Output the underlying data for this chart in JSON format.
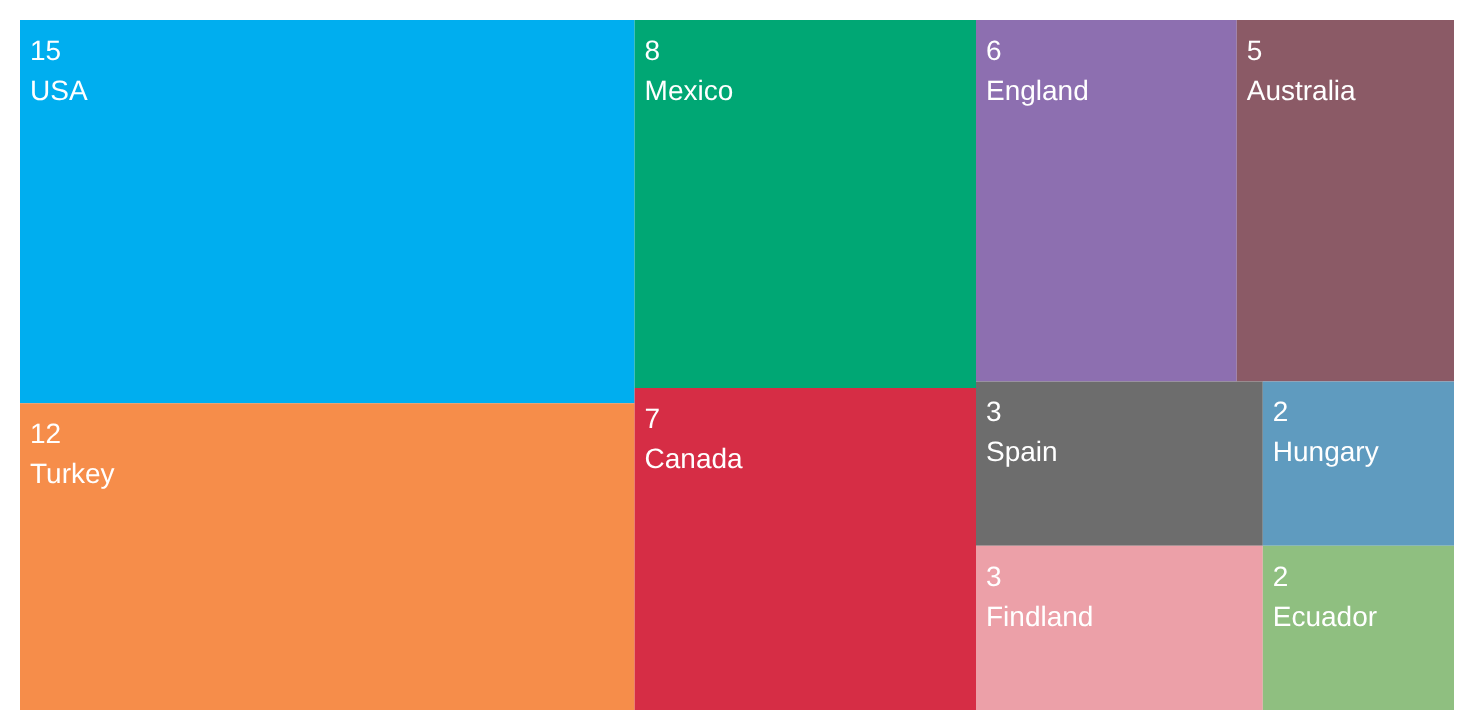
{
  "chart_data": {
    "type": "other",
    "categories": [
      "USA",
      "Turkey",
      "Mexico",
      "Canada",
      "England",
      "Australia",
      "Findland",
      "Spain",
      "Ecuador",
      "Hungary"
    ],
    "values": [
      15,
      12,
      8,
      7,
      6,
      5,
      3,
      3,
      2,
      2
    ],
    "colors": [
      "#00aeef",
      "#f68d4a",
      "#00a774",
      "#d62d45",
      "#8d6fb0",
      "#8b5a66",
      "#eca0a8",
      "#6d6d6d",
      "#8fbf80",
      "#5f9bbf"
    ],
    "data_labels": true
  }
}
